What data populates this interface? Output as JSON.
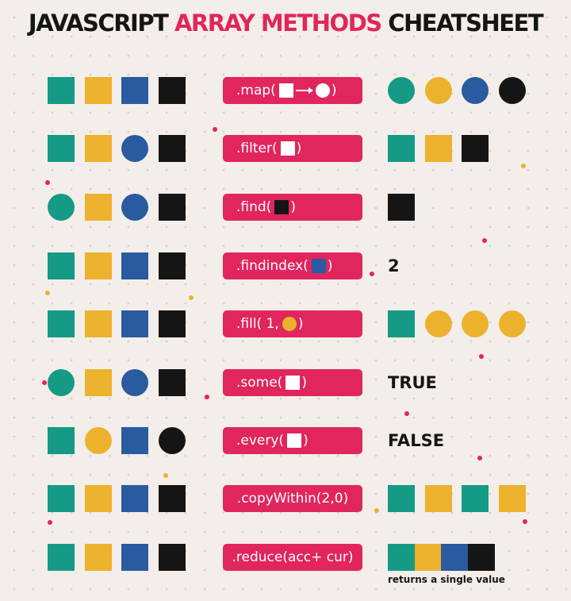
{
  "colors": {
    "teal": "#159a86",
    "yellow": "#ecb22e",
    "blue": "#2a5aa0",
    "black": "#151515",
    "white": "#ffffff",
    "pink": "#e0265d",
    "background": "#f3eee9"
  },
  "title": {
    "part1": "JAVASCRIPT ",
    "accent": "ARRAY METHODS",
    "part2": " CHEATSHEET"
  },
  "rows": [
    {
      "id": "map",
      "input": [
        [
          "square",
          "teal"
        ],
        [
          "square",
          "yellow"
        ],
        [
          "square",
          "blue"
        ],
        [
          "square",
          "black"
        ]
      ],
      "method_prefix": ".map(",
      "method_suffix": " )",
      "arg": "square-arrow-circle",
      "output": [
        [
          "circle",
          "teal"
        ],
        [
          "circle",
          "yellow"
        ],
        [
          "circle",
          "blue"
        ],
        [
          "circle",
          "black"
        ]
      ]
    },
    {
      "id": "filter",
      "input": [
        [
          "square",
          "teal"
        ],
        [
          "square",
          "yellow"
        ],
        [
          "circle",
          "blue"
        ],
        [
          "square",
          "black"
        ]
      ],
      "method_prefix": ".filter(",
      "method_suffix": " )",
      "arg": "white-square",
      "output": [
        [
          "square",
          "teal"
        ],
        [
          "square",
          "yellow"
        ],
        [
          "square",
          "black"
        ]
      ]
    },
    {
      "id": "find",
      "input": [
        [
          "circle",
          "teal"
        ],
        [
          "square",
          "yellow"
        ],
        [
          "circle",
          "blue"
        ],
        [
          "square",
          "black"
        ]
      ],
      "method_prefix": ".find(",
      "method_suffix": " )",
      "arg": "black-square",
      "output": [
        [
          "square",
          "black"
        ]
      ]
    },
    {
      "id": "findindex",
      "input": [
        [
          "square",
          "teal"
        ],
        [
          "square",
          "yellow"
        ],
        [
          "square",
          "blue"
        ],
        [
          "square",
          "black"
        ]
      ],
      "method_prefix": ".findindex(",
      "method_suffix": " )",
      "arg": "blue-square",
      "result_text": "2"
    },
    {
      "id": "fill",
      "input": [
        [
          "square",
          "teal"
        ],
        [
          "square",
          "yellow"
        ],
        [
          "square",
          "blue"
        ],
        [
          "square",
          "black"
        ]
      ],
      "method_prefix": ".fill( 1,",
      "method_suffix": " )",
      "arg": "yellow-circle",
      "output": [
        [
          "square",
          "teal"
        ],
        [
          "circle",
          "yellow"
        ],
        [
          "circle",
          "yellow"
        ],
        [
          "circle",
          "yellow"
        ]
      ]
    },
    {
      "id": "some",
      "input": [
        [
          "circle",
          "teal"
        ],
        [
          "square",
          "yellow"
        ],
        [
          "circle",
          "blue"
        ],
        [
          "square",
          "black"
        ]
      ],
      "method_prefix": ".some(",
      "method_suffix": " )",
      "arg": "white-square",
      "result_text": "TRUE"
    },
    {
      "id": "every",
      "input": [
        [
          "square",
          "teal"
        ],
        [
          "circle",
          "yellow"
        ],
        [
          "square",
          "blue"
        ],
        [
          "circle",
          "black"
        ]
      ],
      "method_prefix": ".every(",
      "method_suffix": " )",
      "arg": "white-square",
      "result_text": "FALSE"
    },
    {
      "id": "copywithin",
      "input": [
        [
          "square",
          "teal"
        ],
        [
          "square",
          "yellow"
        ],
        [
          "square",
          "blue"
        ],
        [
          "square",
          "black"
        ]
      ],
      "method_prefix": ".copyWithin(2,0)",
      "method_suffix": "",
      "arg": "none",
      "output": [
        [
          "square",
          "teal"
        ],
        [
          "square",
          "yellow"
        ],
        [
          "square",
          "teal"
        ],
        [
          "square",
          "yellow"
        ]
      ]
    },
    {
      "id": "reduce",
      "input": [
        [
          "square",
          "teal"
        ],
        [
          "square",
          "yellow"
        ],
        [
          "square",
          "blue"
        ],
        [
          "square",
          "black"
        ]
      ],
      "method_prefix": ".reduce(acc+ cur)",
      "method_suffix": "",
      "arg": "none",
      "output_bar": [
        "teal",
        "yellow",
        "blue",
        "black"
      ],
      "caption": "returns a single value"
    }
  ]
}
